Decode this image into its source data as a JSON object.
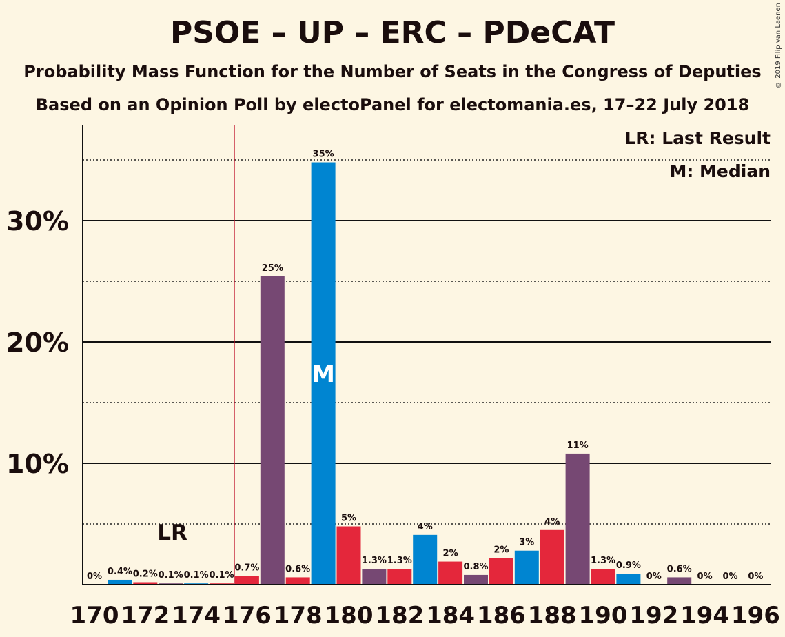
{
  "title": "PSOE – UP – ERC – PDeCAT",
  "subtitle1": "Probability Mass Function for the Number of Seats in the Congress of Deputies",
  "subtitle2": "Based on an Opinion Poll by electoPanel for electomania.es, 17–22 July 2018",
  "credit": "© 2019 Filip van Laenen",
  "legend": {
    "lr": "LR: Last Result",
    "m": "M: Median"
  },
  "colors": {
    "purple": "#764873",
    "blue": "#0085d1",
    "red": "#e4273b",
    "lastResultLine": "#c0102a",
    "text": "#1a0d0d"
  },
  "chart_data": {
    "type": "bar",
    "x": [
      170,
      171,
      172,
      173,
      174,
      175,
      176,
      177,
      178,
      179,
      180,
      181,
      182,
      183,
      184,
      185,
      186,
      187,
      188,
      189,
      190,
      191,
      192,
      193,
      194,
      195,
      196
    ],
    "values": [
      0,
      0.4,
      0.2,
      0.1,
      0.1,
      0.1,
      0.7,
      25.4,
      0.6,
      34.8,
      4.8,
      1.3,
      1.3,
      4.1,
      1.9,
      0.8,
      2.2,
      2.8,
      4.5,
      10.8,
      1.3,
      0.9,
      0,
      0.6,
      0,
      0,
      0
    ],
    "labels": [
      "0%",
      "0.4%",
      "0.2%",
      "0.1%",
      "0.1%",
      "0.1%",
      "0.7%",
      "25%",
      "0.6%",
      "35%",
      "5%",
      "1.3%",
      "1.3%",
      "4%",
      "2%",
      "0.8%",
      "2%",
      "3%",
      "4%",
      "11%",
      "1.3%",
      "0.9%",
      "0%",
      "0.6%",
      "0%",
      "0%",
      "0%"
    ],
    "colors": [
      "blue",
      "blue",
      "red",
      "purple",
      "blue",
      "red",
      "red",
      "purple",
      "red",
      "blue",
      "red",
      "purple",
      "red",
      "blue",
      "red",
      "purple",
      "red",
      "blue",
      "red",
      "purple",
      "red",
      "blue",
      "red",
      "purple",
      "blue",
      "red",
      "purple"
    ],
    "xticks": [
      170,
      172,
      174,
      176,
      178,
      180,
      182,
      184,
      186,
      188,
      190,
      192,
      194,
      196
    ],
    "yticks": [
      10,
      20,
      30
    ],
    "ytick_labels": [
      "10%",
      "20%",
      "30%"
    ],
    "ylim": [
      0,
      38
    ],
    "last_result": 176,
    "last_result_label": "LR",
    "median": 179,
    "median_label": "M"
  }
}
